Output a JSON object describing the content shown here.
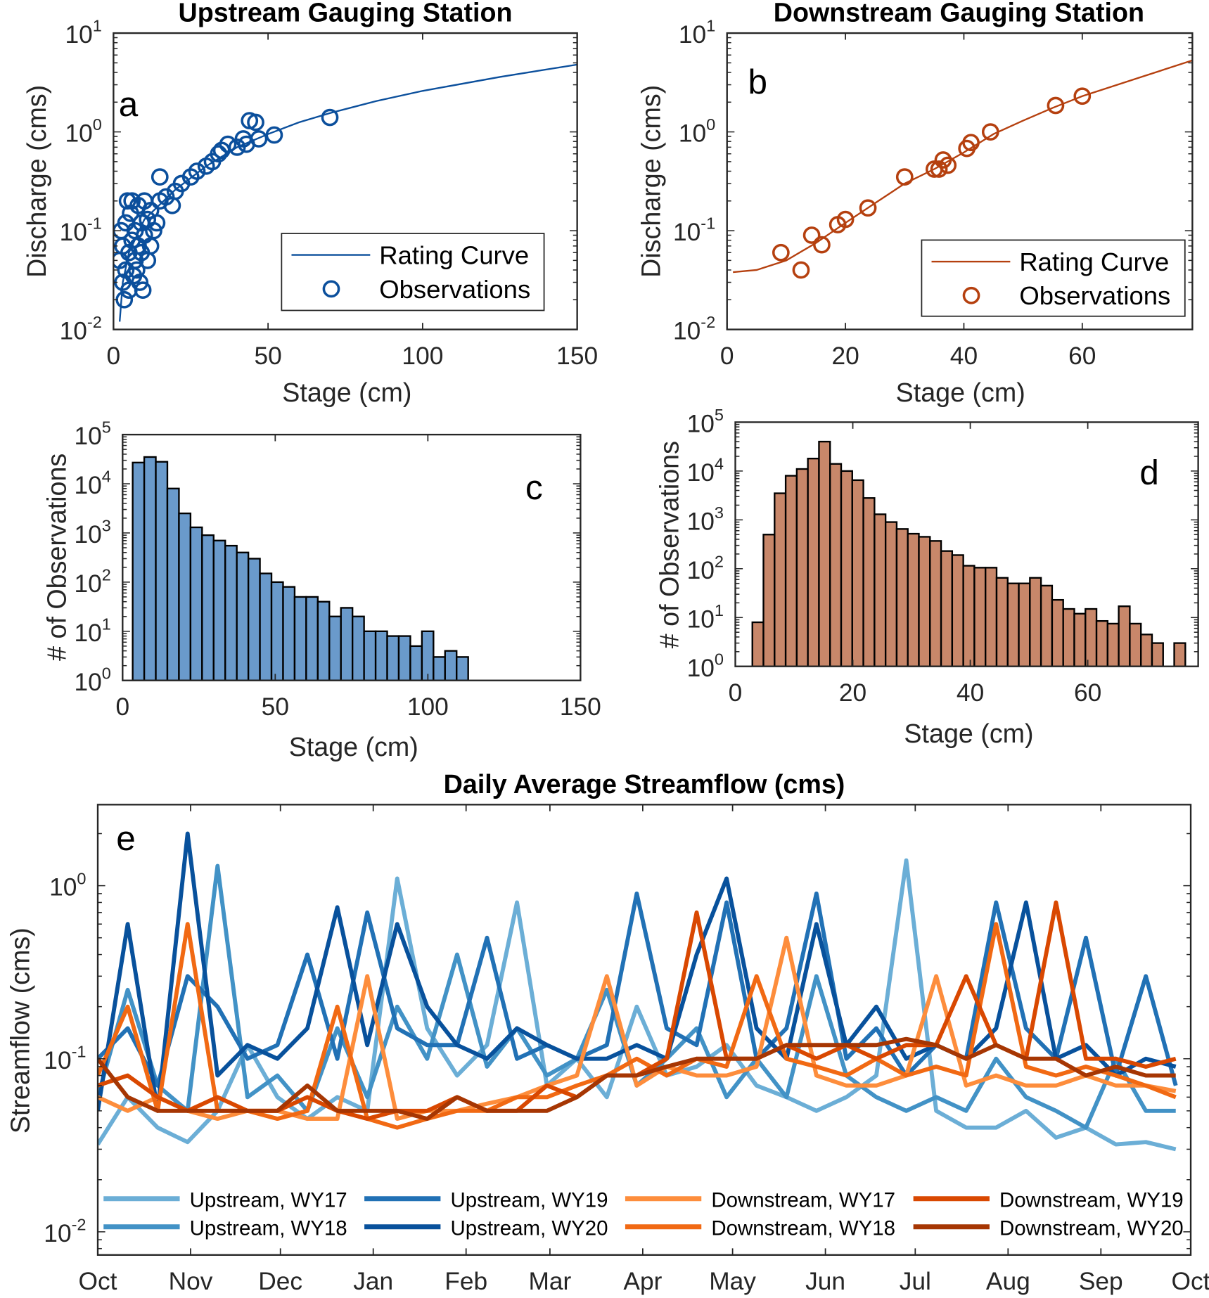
{
  "chart_data": [
    {
      "id": "a",
      "type": "scatter",
      "title": "Upstream Gauging Station",
      "panel_label": "a",
      "xlabel": "Stage (cm)",
      "ylabel": "Discharge (cms)",
      "xlim": [
        0,
        150
      ],
      "ylim": [
        0.01,
        10
      ],
      "yscale": "log",
      "xticks": [
        "0",
        "50",
        "100",
        "150"
      ],
      "xtick_values": [
        0,
        50,
        100,
        150
      ],
      "yticks": [
        {
          "base": "10",
          "exp": "1"
        },
        {
          "base": "10",
          "exp": "0"
        },
        {
          "base": "10",
          "exp": "-1"
        },
        {
          "base": "10",
          "exp": "-2"
        }
      ],
      "ytick_values": [
        10,
        1,
        0.1,
        0.01
      ],
      "color": "#0b4f9c",
      "legend": {
        "placement": "bottom-right",
        "entries": [
          "Rating Curve",
          "Observations"
        ]
      },
      "series": [
        {
          "name": "Rating Curve",
          "kind": "line",
          "points": [
            [
              2,
              0.012
            ],
            [
              3,
              0.03
            ],
            [
              5,
              0.06
            ],
            [
              10,
              0.13
            ],
            [
              20,
              0.26
            ],
            [
              30,
              0.45
            ],
            [
              40,
              0.7
            ],
            [
              50,
              0.95
            ],
            [
              60,
              1.25
            ],
            [
              70,
              1.55
            ],
            [
              85,
              2.05
            ],
            [
              100,
              2.6
            ],
            [
              125,
              3.6
            ],
            [
              150,
              4.8
            ]
          ]
        },
        {
          "name": "Observations",
          "kind": "markers",
          "points": [
            [
              2,
              0.05
            ],
            [
              2.5,
              0.1
            ],
            [
              3,
              0.03
            ],
            [
              3,
              0.07
            ],
            [
              3.5,
              0.02
            ],
            [
              4,
              0.04
            ],
            [
              4,
              0.12
            ],
            [
              4.5,
              0.2
            ],
            [
              5,
              0.06
            ],
            [
              5,
              0.025
            ],
            [
              5.5,
              0.15
            ],
            [
              6,
              0.08
            ],
            [
              6,
              0.2
            ],
            [
              6.5,
              0.035
            ],
            [
              7,
              0.05
            ],
            [
              7,
              0.1
            ],
            [
              7.5,
              0.04
            ],
            [
              8,
              0.07
            ],
            [
              8,
              0.18
            ],
            [
              8.5,
              0.03
            ],
            [
              9,
              0.06
            ],
            [
              9,
              0.12
            ],
            [
              9.5,
              0.025
            ],
            [
              10,
              0.09
            ],
            [
              10,
              0.2
            ],
            [
              11,
              0.05
            ],
            [
              11,
              0.13
            ],
            [
              12,
              0.07
            ],
            [
              12,
              0.16
            ],
            [
              13,
              0.1
            ],
            [
              14,
              0.12
            ],
            [
              15,
              0.35
            ],
            [
              15,
              0.2
            ],
            [
              17,
              0.22
            ],
            [
              19,
              0.18
            ],
            [
              20,
              0.25
            ],
            [
              22,
              0.3
            ],
            [
              25,
              0.35
            ],
            [
              27,
              0.4
            ],
            [
              30,
              0.45
            ],
            [
              32,
              0.5
            ],
            [
              34,
              0.6
            ],
            [
              35,
              0.65
            ],
            [
              37,
              0.75
            ],
            [
              40,
              0.7
            ],
            [
              42,
              0.85
            ],
            [
              43,
              0.75
            ],
            [
              44,
              1.3
            ],
            [
              46,
              1.25
            ],
            [
              47,
              0.85
            ],
            [
              52,
              0.93
            ],
            [
              70,
              1.4
            ]
          ]
        }
      ]
    },
    {
      "id": "b",
      "type": "scatter",
      "title": "Downstream Gauging Station",
      "panel_label": "b",
      "xlabel": "Stage (cm)",
      "ylabel": "Discharge (cms)",
      "xlim": [
        0,
        78.6
      ],
      "ylim": [
        0.01,
        10
      ],
      "yscale": "log",
      "xticks": [
        "0",
        "20",
        "40",
        "60"
      ],
      "xtick_values": [
        0,
        20,
        40,
        60
      ],
      "yticks": [
        {
          "base": "10",
          "exp": "1"
        },
        {
          "base": "10",
          "exp": "0"
        },
        {
          "base": "10",
          "exp": "-1"
        },
        {
          "base": "10",
          "exp": "-2"
        }
      ],
      "ytick_values": [
        10,
        1,
        0.1,
        0.01
      ],
      "color": "#b5400f",
      "legend": {
        "placement": "bottom-right",
        "entries": [
          "Rating Curve",
          "Observations"
        ]
      },
      "series": [
        {
          "name": "Rating Curve",
          "kind": "line",
          "points": [
            [
              1,
              0.038
            ],
            [
              5,
              0.04
            ],
            [
              10,
              0.05
            ],
            [
              15,
              0.075
            ],
            [
              20,
              0.12
            ],
            [
              25,
              0.19
            ],
            [
              30,
              0.3
            ],
            [
              35,
              0.42
            ],
            [
              40,
              0.62
            ],
            [
              45,
              0.95
            ],
            [
              50,
              1.3
            ],
            [
              55,
              1.75
            ],
            [
              60,
              2.3
            ],
            [
              70,
              3.6
            ],
            [
              78.6,
              5.3
            ]
          ]
        },
        {
          "name": "Observations",
          "kind": "markers",
          "points": [
            [
              9.1,
              0.06
            ],
            [
              12.5,
              0.04
            ],
            [
              14.3,
              0.09
            ],
            [
              16,
              0.072
            ],
            [
              18.7,
              0.115
            ],
            [
              20,
              0.13
            ],
            [
              23.8,
              0.17
            ],
            [
              30,
              0.35
            ],
            [
              35,
              0.42
            ],
            [
              35.8,
              0.42
            ],
            [
              36.5,
              0.52
            ],
            [
              37.3,
              0.46
            ],
            [
              40.5,
              0.68
            ],
            [
              41.2,
              0.78
            ],
            [
              44.5,
              1.0
            ],
            [
              55.5,
              1.85
            ],
            [
              60,
              2.3
            ]
          ]
        }
      ]
    },
    {
      "id": "c",
      "type": "bar",
      "panel_label": "c",
      "xlabel": "Stage (cm)",
      "ylabel": "# of Observations",
      "xlim": [
        0,
        150
      ],
      "ylim": [
        1,
        100000
      ],
      "yscale": "log",
      "xticks": [
        "0",
        "50",
        "100",
        "150"
      ],
      "xtick_values": [
        0,
        50,
        100,
        150
      ],
      "yticks": [
        {
          "base": "10",
          "exp": "5"
        },
        {
          "base": "10",
          "exp": "4"
        },
        {
          "base": "10",
          "exp": "3"
        },
        {
          "base": "10",
          "exp": "2"
        },
        {
          "base": "10",
          "exp": "1"
        },
        {
          "base": "10",
          "exp": "0"
        }
      ],
      "ytick_values": [
        100000,
        10000,
        1000,
        100,
        10,
        1
      ],
      "color": "#6a9acb",
      "bin_start": 3.3,
      "bin_width": 3.79,
      "values": [
        27000,
        35000,
        28000,
        8000,
        2500,
        1300,
        900,
        700,
        550,
        400,
        300,
        150,
        100,
        80,
        50,
        50,
        40,
        20,
        30,
        20,
        10,
        10,
        8,
        8,
        5,
        10,
        3,
        4,
        3
      ]
    },
    {
      "id": "d",
      "type": "bar",
      "panel_label": "d",
      "xlabel": "Stage (cm)",
      "ylabel": "# of Observations",
      "xlim": [
        0,
        78.8
      ],
      "ylim": [
        1,
        100000
      ],
      "yscale": "log",
      "xticks": [
        "0",
        "20",
        "40",
        "60"
      ],
      "xtick_values": [
        0,
        20,
        40,
        60
      ],
      "yticks": [
        {
          "base": "10",
          "exp": "5"
        },
        {
          "base": "10",
          "exp": "4"
        },
        {
          "base": "10",
          "exp": "3"
        },
        {
          "base": "10",
          "exp": "2"
        },
        {
          "base": "10",
          "exp": "1"
        },
        {
          "base": "10",
          "exp": "0"
        }
      ],
      "ytick_values": [
        100000,
        10000,
        1000,
        100,
        10,
        1
      ],
      "color": "#c8876a",
      "bin_start": 2.9,
      "bin_width": 1.89,
      "values": [
        8,
        500,
        3500,
        8000,
        11000,
        18000,
        40000,
        14000,
        10000,
        6500,
        2800,
        1300,
        900,
        650,
        520,
        450,
        370,
        230,
        190,
        115,
        105,
        105,
        65,
        50,
        50,
        65,
        45,
        23,
        15,
        12,
        15,
        8.5,
        7.5,
        17,
        7.5,
        4.5,
        3,
        0,
        3
      ]
    },
    {
      "id": "e",
      "type": "line",
      "title": "Daily Average Streamflow (cms)",
      "panel_label": "e",
      "xlabel": "",
      "ylabel": "Streamflow (cms)",
      "xlim": [
        0,
        365
      ],
      "ylim": [
        0.00735,
        2.94
      ],
      "yscale": "log",
      "xticks": [
        "Oct",
        "Nov",
        "Dec",
        "Jan",
        "Feb",
        "Mar",
        "Apr",
        "May",
        "Jun",
        "Jul",
        "Aug",
        "Sep",
        "Oct"
      ],
      "xtick_values": [
        0,
        31,
        61,
        92,
        123,
        151,
        182,
        212,
        243,
        273,
        304,
        335,
        365
      ],
      "yticks": [
        {
          "base": "10",
          "exp": "0"
        },
        {
          "base": "10",
          "exp": "-1"
        },
        {
          "base": "10",
          "exp": "-2"
        }
      ],
      "ytick_values": [
        1,
        0.1,
        0.01
      ],
      "legend": {
        "placement": "bottom",
        "columns": 4
      },
      "x_step_days": 10,
      "series": [
        {
          "name": "Upstream, WY17",
          "color": "#6baed6",
          "values": [
            0.032,
            0.06,
            0.04,
            0.033,
            0.05,
            0.12,
            0.06,
            0.045,
            0.06,
            0.05,
            1.1,
            0.15,
            0.08,
            0.12,
            0.8,
            0.07,
            0.1,
            0.06,
            0.2,
            0.08,
            0.09,
            0.12,
            0.07,
            0.06,
            0.05,
            0.06,
            0.08,
            1.4,
            0.05,
            0.04,
            0.04,
            0.05,
            0.035,
            0.04,
            0.032,
            0.033,
            0.03
          ]
        },
        {
          "name": "Upstream, WY18",
          "color": "#4292c6",
          "values": [
            0.06,
            0.25,
            0.07,
            0.05,
            1.3,
            0.06,
            0.08,
            0.05,
            0.15,
            0.06,
            0.2,
            0.1,
            0.4,
            0.09,
            0.15,
            0.08,
            0.1,
            0.25,
            0.07,
            0.1,
            0.15,
            0.06,
            0.1,
            0.06,
            0.3,
            0.08,
            0.06,
            0.05,
            0.06,
            0.05,
            0.1,
            0.06,
            0.05,
            0.04,
            0.1,
            0.05,
            0.05
          ]
        },
        {
          "name": "Upstream, WY19",
          "color": "#2171b5",
          "values": [
            0.1,
            0.15,
            0.07,
            0.3,
            0.2,
            0.1,
            0.12,
            0.4,
            0.1,
            0.7,
            0.15,
            0.12,
            0.12,
            0.5,
            0.1,
            0.12,
            0.1,
            0.12,
            0.9,
            0.15,
            0.12,
            0.8,
            0.1,
            0.15,
            0.9,
            0.1,
            0.15,
            0.08,
            0.12,
            0.1,
            0.8,
            0.15,
            0.1,
            0.5,
            0.08,
            0.3,
            0.07
          ]
        },
        {
          "name": "Upstream, WY20",
          "color": "#08519c",
          "values": [
            0.05,
            0.6,
            0.05,
            2.0,
            0.08,
            0.12,
            0.1,
            0.15,
            0.75,
            0.12,
            0.6,
            0.2,
            0.12,
            0.1,
            0.15,
            0.12,
            0.1,
            0.1,
            0.12,
            0.1,
            0.4,
            1.1,
            0.15,
            0.1,
            0.6,
            0.12,
            0.2,
            0.1,
            0.12,
            0.1,
            0.15,
            0.8,
            0.1,
            0.12,
            0.08,
            0.1,
            0.09
          ]
        },
        {
          "name": "Downstream, WY17",
          "color": "#fd8d3c",
          "values": [
            0.06,
            0.05,
            0.06,
            0.05,
            0.045,
            0.05,
            0.05,
            0.045,
            0.045,
            0.3,
            0.045,
            0.05,
            0.05,
            0.055,
            0.06,
            0.07,
            0.08,
            0.3,
            0.07,
            0.09,
            0.08,
            0.08,
            0.09,
            0.5,
            0.08,
            0.07,
            0.07,
            0.08,
            0.3,
            0.07,
            0.08,
            0.07,
            0.07,
            0.08,
            0.07,
            0.07,
            0.065
          ]
        },
        {
          "name": "Downstream, WY18",
          "color": "#f16913",
          "values": [
            0.08,
            0.2,
            0.05,
            0.6,
            0.05,
            0.05,
            0.045,
            0.05,
            0.2,
            0.045,
            0.04,
            0.045,
            0.05,
            0.05,
            0.06,
            0.06,
            0.07,
            0.08,
            0.1,
            0.08,
            0.1,
            0.09,
            0.3,
            0.1,
            0.09,
            0.08,
            0.1,
            0.08,
            0.09,
            0.08,
            0.6,
            0.09,
            0.08,
            0.09,
            0.08,
            0.07,
            0.06
          ]
        },
        {
          "name": "Downstream, WY19",
          "color": "#d94801",
          "values": [
            0.07,
            0.08,
            0.06,
            0.05,
            0.06,
            0.05,
            0.05,
            0.06,
            0.05,
            0.045,
            0.05,
            0.05,
            0.06,
            0.05,
            0.05,
            0.07,
            0.06,
            0.08,
            0.08,
            0.1,
            0.7,
            0.1,
            0.1,
            0.12,
            0.1,
            0.12,
            0.1,
            0.12,
            0.12,
            0.3,
            0.12,
            0.1,
            0.8,
            0.1,
            0.1,
            0.09,
            0.1
          ]
        },
        {
          "name": "Downstream, WY20",
          "color": "#a63603",
          "values": [
            0.1,
            0.06,
            0.05,
            0.05,
            0.05,
            0.05,
            0.05,
            0.07,
            0.05,
            0.05,
            0.05,
            0.045,
            0.06,
            0.05,
            0.05,
            0.05,
            0.06,
            0.08,
            0.08,
            0.09,
            0.1,
            0.1,
            0.1,
            0.12,
            0.12,
            0.12,
            0.12,
            0.13,
            0.12,
            0.1,
            0.12,
            0.1,
            0.1,
            0.08,
            0.09,
            0.08,
            0.08
          ]
        }
      ]
    }
  ]
}
